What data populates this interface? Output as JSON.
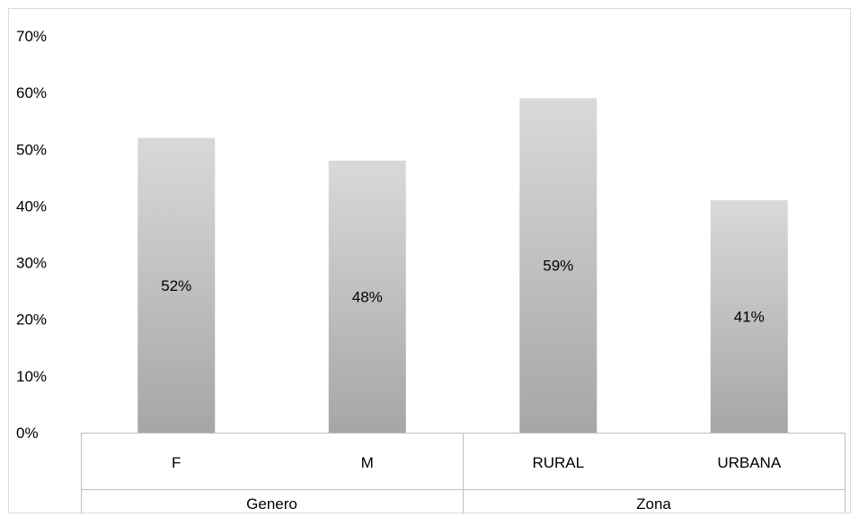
{
  "chart_data": {
    "type": "bar",
    "categories": [
      "F",
      "M",
      "RURAL",
      "URBANA"
    ],
    "groups": [
      {
        "name": "Genero",
        "categories": [
          "F",
          "M"
        ]
      },
      {
        "name": "Zona",
        "categories": [
          "RURAL",
          "URBANA"
        ]
      }
    ],
    "values": [
      52,
      48,
      59,
      41
    ],
    "data_labels": [
      "52%",
      "48%",
      "59%",
      "41%"
    ],
    "ylim": [
      0,
      70
    ],
    "yticks": [
      0,
      10,
      20,
      30,
      40,
      50,
      60,
      70
    ],
    "ytick_labels": [
      "0%",
      "10%",
      "20%",
      "30%",
      "40%",
      "50%",
      "60%",
      "70%"
    ],
    "grid": false,
    "legend": "none",
    "bar_gradient": {
      "top": "#d9d9d9",
      "bottom": "#a6a6a6"
    }
  }
}
